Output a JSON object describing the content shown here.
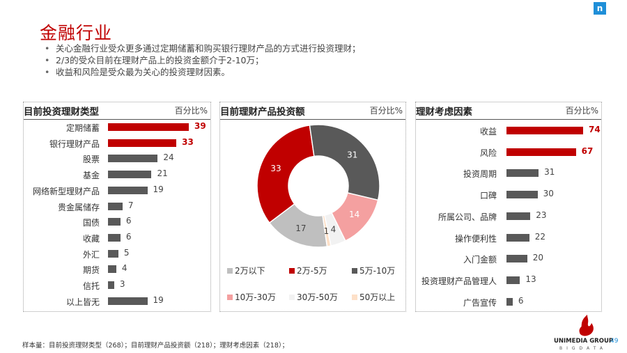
{
  "page": {
    "title": "金融行业",
    "logo_letter": "n",
    "page_number": "49",
    "footnote": "样本量：目前投资理财类型（268）；目前理财产品投资额（218）；理财考虑因素（218）；",
    "brand": {
      "name": "UNIMEDIA GROUP",
      "sub": "BIGDATA"
    }
  },
  "bullets": [
    "关心金融行业受众更多通过定期储蓄和购买银行理财产品的方式进行投资理财；",
    "2/3的受众目前在理财产品上的投资金额介于2-10万；",
    "收益和风险是受众最为关心的投资理财因素。"
  ],
  "colors": {
    "accent": "#c00000",
    "bar": "#595959",
    "brand_blue": "#1f8fd8"
  },
  "chart_data": [
    {
      "type": "bar",
      "title": "目前投资理财类型",
      "unit": "百分比%",
      "categories": [
        "定期储蓄",
        "银行理财产品",
        "股票",
        "基金",
        "网络新型理财产品",
        "贵金属储存",
        "国债",
        "收藏",
        "外汇",
        "期货",
        "信托",
        "以上皆无"
      ],
      "values": [
        39,
        33,
        24,
        21,
        19,
        7,
        6,
        6,
        5,
        4,
        3,
        19
      ],
      "highlight": [
        0,
        1
      ],
      "series_color": "#595959",
      "highlight_color": "#c00000"
    },
    {
      "type": "pie",
      "title": "目前理财产品投资额",
      "unit": "百分比%",
      "donut": true,
      "labels": [
        "2万以下",
        "2万-5万",
        "5万-10万",
        "10万-30万",
        "30万-50万",
        "50万以上"
      ],
      "values": [
        17,
        33,
        31,
        14,
        4,
        1
      ],
      "colors": [
        "#bfbfbf",
        "#c00000",
        "#595959",
        "#f4a0a0",
        "#f2f2f2",
        "#fde0c8"
      ]
    },
    {
      "type": "bar",
      "title": "理财考虑因素",
      "unit": "百分比%",
      "categories": [
        "收益",
        "风险",
        "投资周期",
        "口碑",
        "所属公司、品牌",
        "操作便利性",
        "入门金额",
        "投资理财产品管理人",
        "广告宣传"
      ],
      "values": [
        74,
        67,
        31,
        30,
        23,
        22,
        20,
        13,
        6
      ],
      "highlight": [
        0,
        1
      ],
      "series_color": "#595959",
      "highlight_color": "#c00000"
    }
  ]
}
